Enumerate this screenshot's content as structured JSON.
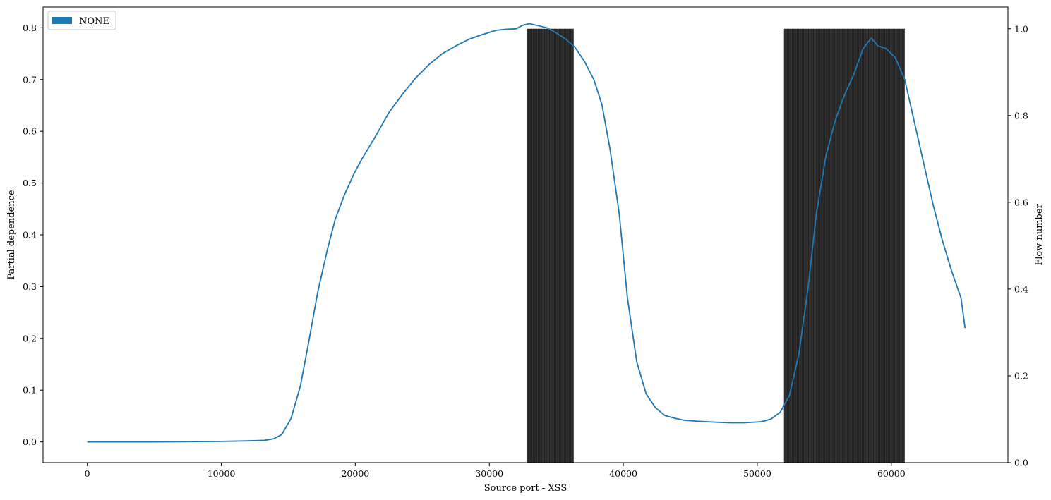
{
  "chart_data": {
    "type": "line",
    "title": "",
    "xlabel": "Source port - XSS",
    "ylabel": "Partial dependence",
    "y2label": "Flow number",
    "xlim": [
      -3300,
      68700
    ],
    "ylim": [
      -0.04,
      0.84
    ],
    "y2lim": [
      0,
      1.05
    ],
    "grid": false,
    "legend_position": "top-left",
    "xticks": [
      0,
      10000,
      20000,
      30000,
      40000,
      50000,
      60000
    ],
    "xtick_labels": [
      "0",
      "10000",
      "20000",
      "30000",
      "40000",
      "50000",
      "60000"
    ],
    "yticks": [
      0.0,
      0.1,
      0.2,
      0.3,
      0.4,
      0.5,
      0.6,
      0.7,
      0.8
    ],
    "ytick_labels": [
      "0.0",
      "0.1",
      "0.2",
      "0.3",
      "0.4",
      "0.5",
      "0.6",
      "0.7",
      "0.8"
    ],
    "y2ticks": [
      0.0,
      0.2,
      0.4,
      0.6,
      0.8,
      1.0
    ],
    "y2tick_labels": [
      "0.0",
      "0.2",
      "0.4",
      "0.6",
      "0.8",
      "1.0"
    ],
    "line_color": "#1f77b4",
    "band_color": "#000000",
    "series": [
      {
        "name": "NONE",
        "x": [
          0,
          5000,
          10000,
          12000,
          13200,
          13900,
          14500,
          15200,
          15900,
          16500,
          17200,
          17900,
          18500,
          19200,
          19900,
          20500,
          21500,
          22500,
          23500,
          24500,
          25500,
          26500,
          27500,
          28500,
          29500,
          30500,
          31200,
          32000,
          32500,
          33000,
          33500,
          34300,
          35000,
          35700,
          36400,
          37100,
          37800,
          38400,
          39000,
          39700,
          40300,
          41000,
          41700,
          42400,
          43100,
          43800,
          44500,
          45500,
          47000,
          48000,
          49000,
          50300,
          51000,
          51700,
          52400,
          53100,
          53800,
          54400,
          55100,
          55800,
          56500,
          57200,
          57900,
          58500,
          59000,
          59600,
          60300,
          61000,
          61700,
          62400,
          63100,
          63800,
          64500,
          65200,
          65500
        ],
        "values": [
          0.0,
          0.0,
          0.001,
          0.002,
          0.003,
          0.006,
          0.014,
          0.045,
          0.108,
          0.19,
          0.29,
          0.37,
          0.43,
          0.478,
          0.518,
          0.547,
          0.59,
          0.636,
          0.671,
          0.703,
          0.729,
          0.75,
          0.765,
          0.778,
          0.787,
          0.795,
          0.797,
          0.798,
          0.805,
          0.808,
          0.805,
          0.8,
          0.79,
          0.778,
          0.762,
          0.735,
          0.7,
          0.652,
          0.567,
          0.44,
          0.28,
          0.155,
          0.093,
          0.066,
          0.051,
          0.046,
          0.042,
          0.04,
          0.038,
          0.037,
          0.037,
          0.039,
          0.044,
          0.057,
          0.09,
          0.17,
          0.3,
          0.44,
          0.55,
          0.62,
          0.67,
          0.71,
          0.76,
          0.78,
          0.765,
          0.76,
          0.742,
          0.7,
          0.62,
          0.54,
          0.46,
          0.39,
          0.33,
          0.278,
          0.22
        ]
      }
    ],
    "flow_bands": [
      {
        "x_start": 32800,
        "x_end": 36300,
        "value": 1.0
      },
      {
        "x_start": 52000,
        "x_end": 61000,
        "value": 1.0
      }
    ]
  }
}
